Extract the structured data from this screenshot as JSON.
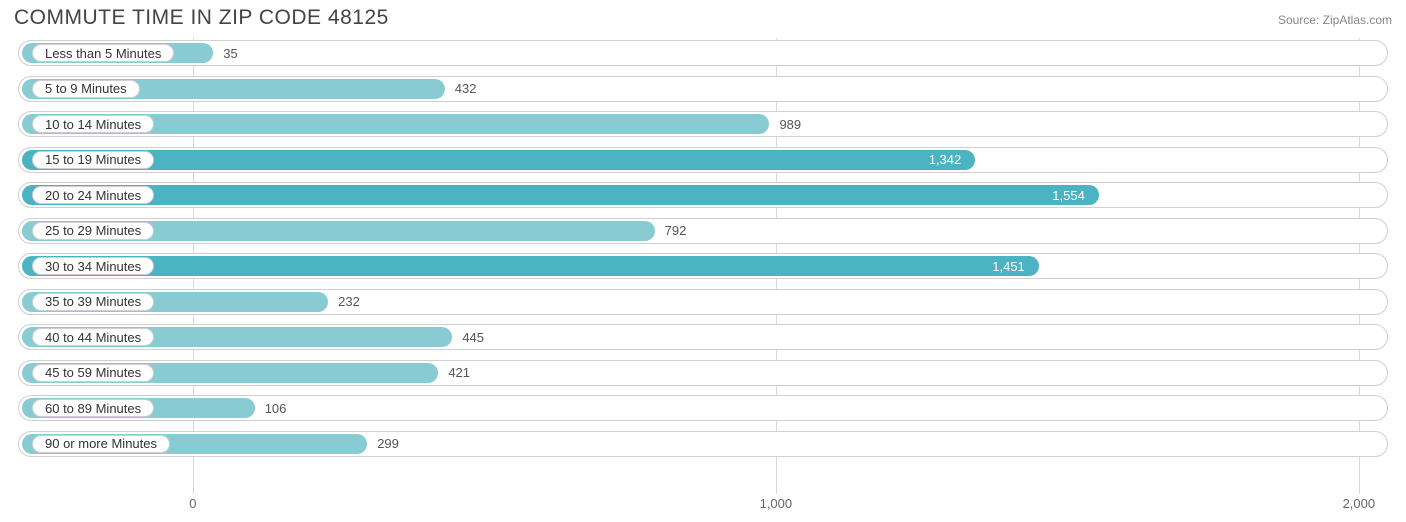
{
  "title": "COMMUTE TIME IN ZIP CODE 48125",
  "source": "Source: ZipAtlas.com",
  "chart": {
    "type": "bar-horizontal",
    "x_min": -300,
    "x_max": 2050,
    "label_threshold_inside": 1100,
    "bar_color_dark": "#4bb3c1",
    "bar_color_light": "#88cbd2",
    "track_border": "#cfcfcf",
    "grid_color": "#d9d9d9",
    "value_text_outside": "#555555",
    "value_text_inside": "#ffffff",
    "title_color": "#444444",
    "source_color": "#888888",
    "background": "#ffffff",
    "title_fontsize": 21,
    "label_fontsize": 13,
    "ticks": [
      {
        "value": 0,
        "label": "0"
      },
      {
        "value": 1000,
        "label": "1,000"
      },
      {
        "value": 2000,
        "label": "2,000"
      }
    ],
    "rows": [
      {
        "label": "Less than 5 Minutes",
        "value": 35,
        "display": "35",
        "shade": "light"
      },
      {
        "label": "5 to 9 Minutes",
        "value": 432,
        "display": "432",
        "shade": "light"
      },
      {
        "label": "10 to 14 Minutes",
        "value": 989,
        "display": "989",
        "shade": "light"
      },
      {
        "label": "15 to 19 Minutes",
        "value": 1342,
        "display": "1,342",
        "shade": "dark"
      },
      {
        "label": "20 to 24 Minutes",
        "value": 1554,
        "display": "1,554",
        "shade": "dark"
      },
      {
        "label": "25 to 29 Minutes",
        "value": 792,
        "display": "792",
        "shade": "light"
      },
      {
        "label": "30 to 34 Minutes",
        "value": 1451,
        "display": "1,451",
        "shade": "dark"
      },
      {
        "label": "35 to 39 Minutes",
        "value": 232,
        "display": "232",
        "shade": "light"
      },
      {
        "label": "40 to 44 Minutes",
        "value": 445,
        "display": "445",
        "shade": "light"
      },
      {
        "label": "45 to 59 Minutes",
        "value": 421,
        "display": "421",
        "shade": "light"
      },
      {
        "label": "60 to 89 Minutes",
        "value": 106,
        "display": "106",
        "shade": "light"
      },
      {
        "label": "90 or more Minutes",
        "value": 299,
        "display": "299",
        "shade": "light"
      }
    ]
  }
}
